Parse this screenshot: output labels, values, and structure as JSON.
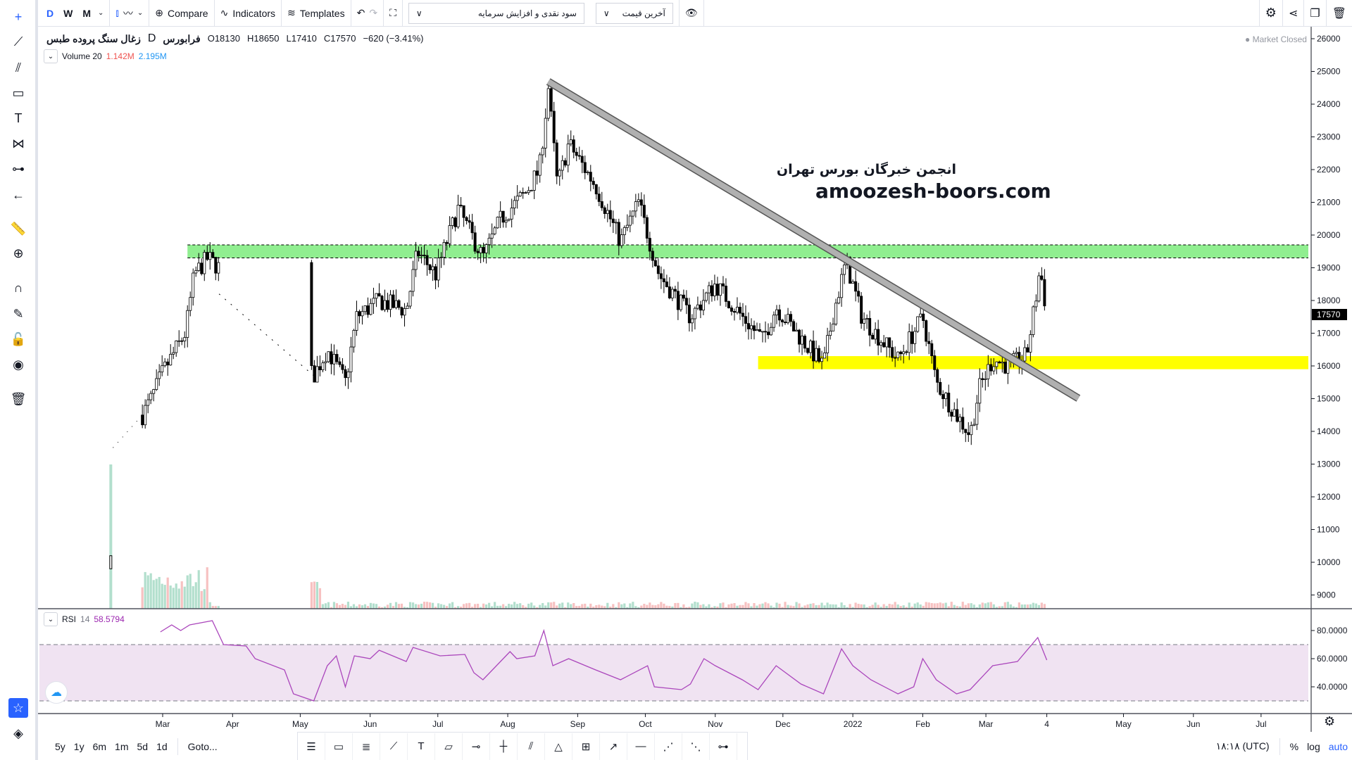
{
  "toolbar": {
    "intervals": [
      "D",
      "W",
      "M"
    ],
    "compare": "Compare",
    "indicators": "Indicators",
    "templates": "Templates",
    "dropdown_adjust": "سود نقدی و افزایش سرمایه",
    "dropdown_price": "آخرین قیمت"
  },
  "legend": {
    "symbol": "زغال سنگ پروده طبس",
    "interval": "D",
    "exchange": "فرابورس",
    "open": "O18130",
    "high": "H18650",
    "low": "L17410",
    "close": "C17570",
    "change": "−620 (−3.41%)"
  },
  "volume": {
    "label": "Volume 20",
    "value1": "1.142M",
    "value2": "2.195M"
  },
  "rsi": {
    "label": "RSI",
    "period": "14",
    "value": "58.5794"
  },
  "status": "Market Closed",
  "watermark": {
    "line1": "انجمن خبرگان بورس تهران",
    "line2": "amoozesh-boors.com"
  },
  "bottom": {
    "ranges": [
      "5y",
      "1y",
      "6m",
      "1m",
      "5d",
      "1d"
    ],
    "goto": "Goto...",
    "time": "۱۸:۱۸ (UTC)",
    "percent": "%",
    "log": "log",
    "auto": "auto"
  },
  "colors": {
    "accent": "#2962ff",
    "green_zone": "#90ee90",
    "yellow_zone": "#ffff00",
    "rsi_line": "#ab47bc",
    "rsi_band": "#f0e3f2",
    "trendline": "#b0b0b0"
  },
  "chart_data": {
    "type": "candlestick",
    "time_unit": "days since 2021-03-01",
    "price_axis": {
      "ticks": [
        9000,
        10000,
        11000,
        12000,
        13000,
        14000,
        15000,
        16000,
        17000,
        18000,
        19000,
        20000,
        21000,
        22000,
        23000,
        24000,
        25000,
        26000
      ],
      "last_price": "17570"
    },
    "time_axis": [
      {
        "label": "Mar",
        "day": 0
      },
      {
        "label": "Apr",
        "day": 31
      },
      {
        "label": "May",
        "day": 61
      },
      {
        "label": "Jun",
        "day": 92
      },
      {
        "label": "Jul",
        "day": 122
      },
      {
        "label": "Aug",
        "day": 153
      },
      {
        "label": "Sep",
        "day": 184
      },
      {
        "label": "Oct",
        "day": 214
      },
      {
        "label": "Nov",
        "day": 245
      },
      {
        "label": "Dec",
        "day": 275
      },
      {
        "label": "2022",
        "day": 306
      },
      {
        "label": "Feb",
        "day": 337
      },
      {
        "label": "Mar",
        "day": 365
      },
      {
        "label": "4",
        "day": 392
      },
      {
        "label": "May",
        "day": 426
      },
      {
        "label": "Jun",
        "day": 457
      },
      {
        "label": "Jul",
        "day": 487
      }
    ],
    "close_keypoints": [
      [
        -23,
        10000
      ],
      [
        -9,
        14500
      ],
      [
        -5,
        15000
      ],
      [
        0,
        15800
      ],
      [
        10,
        17000
      ],
      [
        14,
        18800
      ],
      [
        20,
        19300
      ],
      [
        25,
        19000
      ],
      [
        67,
        15700
      ],
      [
        73,
        16500
      ],
      [
        81,
        15500
      ],
      [
        86,
        17500
      ],
      [
        96,
        18000
      ],
      [
        108,
        17700
      ],
      [
        113,
        19500
      ],
      [
        121,
        18800
      ],
      [
        131,
        20800
      ],
      [
        142,
        19300
      ],
      [
        150,
        20500
      ],
      [
        161,
        21300
      ],
      [
        167,
        22000
      ],
      [
        171,
        24500
      ],
      [
        175,
        21500
      ],
      [
        180,
        22800
      ],
      [
        192,
        21500
      ],
      [
        203,
        19800
      ],
      [
        211,
        21000
      ],
      [
        220,
        18800
      ],
      [
        234,
        17500
      ],
      [
        245,
        18500
      ],
      [
        257,
        17500
      ],
      [
        266,
        16800
      ],
      [
        272,
        17800
      ],
      [
        287,
        16500
      ],
      [
        293,
        16000
      ],
      [
        297,
        17500
      ],
      [
        303,
        19200
      ],
      [
        310,
        17500
      ],
      [
        326,
        16200
      ],
      [
        337,
        17500
      ],
      [
        343,
        15500
      ],
      [
        352,
        14500
      ],
      [
        358,
        13900
      ],
      [
        362,
        15300
      ],
      [
        368,
        16200
      ],
      [
        375,
        16000
      ],
      [
        383,
        16300
      ],
      [
        387,
        18000
      ],
      [
        389,
        19000
      ],
      [
        392,
        17570
      ]
    ],
    "zones": [
      {
        "name": "resistance",
        "from_day": 11,
        "low": 19300,
        "high": 19700,
        "color": "#90ee90"
      },
      {
        "name": "support",
        "from_day": 264,
        "low": 15900,
        "high": 16300,
        "color": "#ffff00"
      }
    ],
    "trendline": {
      "start": [
        171,
        24690
      ],
      "end": [
        406,
        15010
      ]
    },
    "rsi_levels": {
      "upper": 70,
      "lower": 30,
      "ticks": [
        80,
        60,
        40
      ]
    },
    "rsi_keypoints": [
      [
        -1,
        79
      ],
      [
        4,
        84
      ],
      [
        8,
        80
      ],
      [
        12,
        84
      ],
      [
        22,
        87
      ],
      [
        27,
        70
      ],
      [
        37,
        69
      ],
      [
        41,
        60
      ],
      [
        54,
        52
      ],
      [
        58,
        35
      ],
      [
        67,
        30
      ],
      [
        73,
        55
      ],
      [
        77,
        62
      ],
      [
        81,
        40
      ],
      [
        85,
        62
      ],
      [
        92,
        60
      ],
      [
        96,
        66
      ],
      [
        108,
        58
      ],
      [
        111,
        68
      ],
      [
        123,
        62
      ],
      [
        134,
        63
      ],
      [
        138,
        50
      ],
      [
        142,
        45
      ],
      [
        154,
        65
      ],
      [
        157,
        60
      ],
      [
        165,
        62
      ],
      [
        169,
        80
      ],
      [
        173,
        55
      ],
      [
        180,
        60
      ],
      [
        192,
        52
      ],
      [
        203,
        45
      ],
      [
        215,
        55
      ],
      [
        218,
        40
      ],
      [
        230,
        38
      ],
      [
        234,
        42
      ],
      [
        240,
        60
      ],
      [
        245,
        55
      ],
      [
        257,
        45
      ],
      [
        264,
        38
      ],
      [
        272,
        55
      ],
      [
        283,
        42
      ],
      [
        293,
        35
      ],
      [
        301,
        67
      ],
      [
        306,
        55
      ],
      [
        314,
        45
      ],
      [
        326,
        35
      ],
      [
        333,
        40
      ],
      [
        337,
        60
      ],
      [
        343,
        45
      ],
      [
        352,
        35
      ],
      [
        358,
        38
      ],
      [
        368,
        55
      ],
      [
        379,
        58
      ],
      [
        388,
        75
      ],
      [
        392,
        59
      ]
    ]
  }
}
